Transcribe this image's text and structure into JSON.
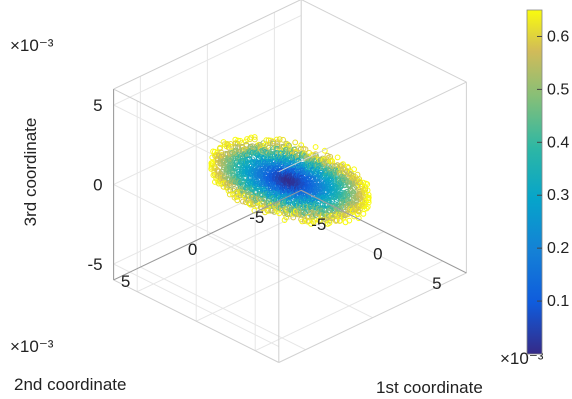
{
  "chart_data": {
    "type": "scatter",
    "subtype": "3d-scatter",
    "title": "",
    "xlabel": "1st coordinate",
    "ylabel": "2nd coordinate",
    "zlabel": "3rd coordinate",
    "xlim": [
      -7,
      7
    ],
    "ylim": [
      -7,
      7
    ],
    "zlim": [
      -6,
      6
    ],
    "xticks": [
      "-5",
      "0",
      "5"
    ],
    "yticks": [
      "-5",
      "0",
      "5"
    ],
    "zticks": [
      "-5",
      "0",
      "5"
    ],
    "x_exponent": "×10⁻³",
    "y_exponent": "×10⁻³",
    "z_exponent": "×10⁻³",
    "grid": true,
    "marker": "open-circle",
    "colormap": "parula",
    "color_range": [
      0,
      0.65
    ],
    "colorbar_ticks": [
      "0.1",
      "0.2",
      "0.3",
      "0.4",
      "0.5",
      "0.6"
    ],
    "colorbar_tick_values": [
      0.1,
      0.2,
      0.3,
      0.4,
      0.5,
      0.6
    ],
    "colorbar_position": "right",
    "point_cloud": {
      "shape": "flat elliptical disc in the plane z = 0, long axis along 1st coordinate",
      "x_extent": [
        -5.6,
        5.6
      ],
      "y_extent": [
        -3.2,
        3.2
      ],
      "z_extent": [
        -0.4,
        0.4
      ],
      "color_rule": "color value grows with distance from the origin, about 0.65 at the outer rim"
    }
  }
}
